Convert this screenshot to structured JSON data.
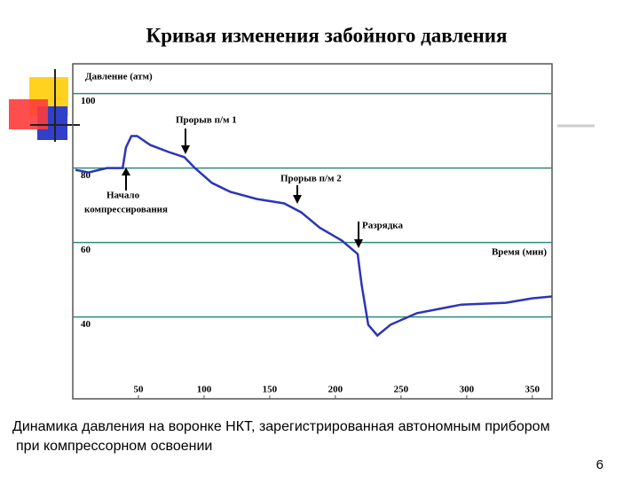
{
  "chart_data": {
    "type": "line",
    "title": "Кривая изменения забойного давления",
    "y_label": "Давление (атм)",
    "x_label": "Время (мин)",
    "x": [
      2,
      12,
      26,
      38,
      40.5,
      44.6,
      49,
      59,
      73,
      85,
      93,
      106,
      120,
      140,
      161,
      174,
      188,
      205,
      217,
      220,
      225,
      232,
      242,
      262,
      296,
      330,
      350,
      365
    ],
    "series": [
      {
        "name": "Давление",
        "color": "#2b35b8",
        "values": [
          79.5,
          78.8,
          80,
          80,
          85.5,
          88.6,
          88.6,
          86.2,
          84.3,
          82.9,
          80,
          76,
          73.6,
          71.7,
          70.5,
          68.1,
          64,
          60.5,
          56.9,
          48.6,
          37.9,
          35,
          37.9,
          41,
          43.3,
          43.8,
          45,
          45.5
        ]
      }
    ],
    "xlim": [
      0,
      365
    ],
    "xticks": [
      50,
      100,
      150,
      200,
      250,
      300,
      350
    ],
    "ylim": [
      18,
      108
    ],
    "yticks": [
      40,
      60,
      80,
      100
    ],
    "grid": true,
    "grid_color": "#2e8b7a",
    "annotations": {
      "start": [
        "Начало",
        "компрессирования"
      ],
      "break1": "Прорыв п/м 1",
      "break2": "Прорыв п/м 2",
      "discharge": "Разрядка"
    },
    "caption": [
      "Динамика давления на воронке НКТ, зарегистрированная автономным прибором",
      "при компрессорном освоении"
    ],
    "page_number": "6"
  }
}
